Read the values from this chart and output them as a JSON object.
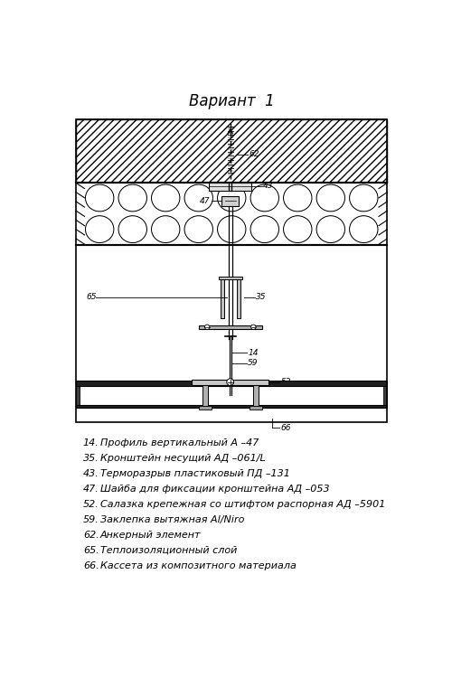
{
  "title": "Вариант  1",
  "title_fontsize": 12,
  "legend_items": [
    {
      "num": "14.",
      "text": "Профиль вертикальный А –47"
    },
    {
      "num": "35.",
      "text": "Кронштейн несущий АД –061/L"
    },
    {
      "num": "43.",
      "text": "Терморазрыв пластиковый ПД –131"
    },
    {
      "num": "47.",
      "text": "Шайба для фиксации кронштейна АД –053"
    },
    {
      "num": "52.",
      "text": "Салазка крепежная со штифтом распорная АД –5901"
    },
    {
      "num": "59.",
      "text": "Заклепка вытяжная Al/Niro"
    },
    {
      "num": "62.",
      "text": "Анкерный элемент"
    },
    {
      "num": "65.",
      "text": "Теплоизоляционный слой"
    },
    {
      "num": "66.",
      "text": "Кассета из композитного материала"
    }
  ],
  "line_color": "#000000",
  "bg_color": "#ffffff",
  "label_fontsize": 6.5,
  "legend_fontsize": 8.0
}
